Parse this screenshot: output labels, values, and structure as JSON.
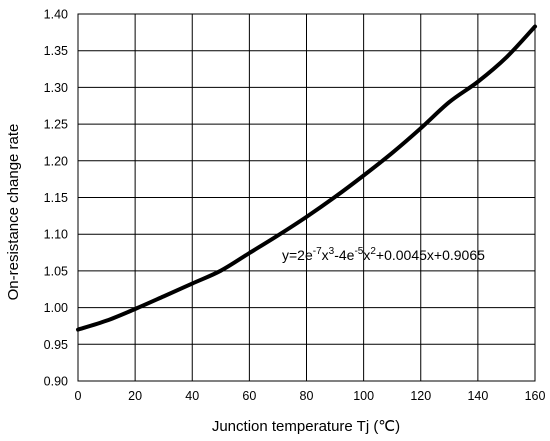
{
  "chart_data": {
    "type": "line",
    "title": "",
    "xlabel": "Junction temperature Tj (℃)",
    "ylabel": "On-resistance change rate",
    "xlim": [
      0,
      160
    ],
    "ylim": [
      0.9,
      1.4
    ],
    "x_ticks": [
      "0",
      "20",
      "40",
      "60",
      "80",
      "100",
      "120",
      "140",
      "160"
    ],
    "y_ticks": [
      "0.90",
      "0.95",
      "1.00",
      "1.05",
      "1.10",
      "1.15",
      "1.20",
      "1.25",
      "1.30",
      "1.35",
      "1.40"
    ],
    "grid": true,
    "series": [
      {
        "x": [
          0,
          10,
          20,
          30,
          40,
          50,
          60,
          70,
          80,
          90,
          100,
          110,
          120,
          130,
          140,
          150,
          160
        ],
        "y": [
          0.97,
          0.9822,
          0.9981,
          1.0153,
          1.0328,
          1.0503,
          1.0743,
          1.0983,
          1.1236,
          1.1508,
          1.18,
          1.2107,
          1.2443,
          1.28,
          1.3077,
          1.341,
          1.383
        ]
      }
    ],
    "annotation": {
      "text": "y=2e^{-7}x^3-4e^{-5}x^2+0.0045x+0.9065",
      "parts": {
        "p1": "y=2e",
        "sup1": "-7",
        "p2": "x",
        "sup2": "3",
        "p3": "-4e",
        "sup3": "-5",
        "p4": "x",
        "sup4": "2",
        "p5": "+0.0045x+0.9065"
      }
    }
  }
}
